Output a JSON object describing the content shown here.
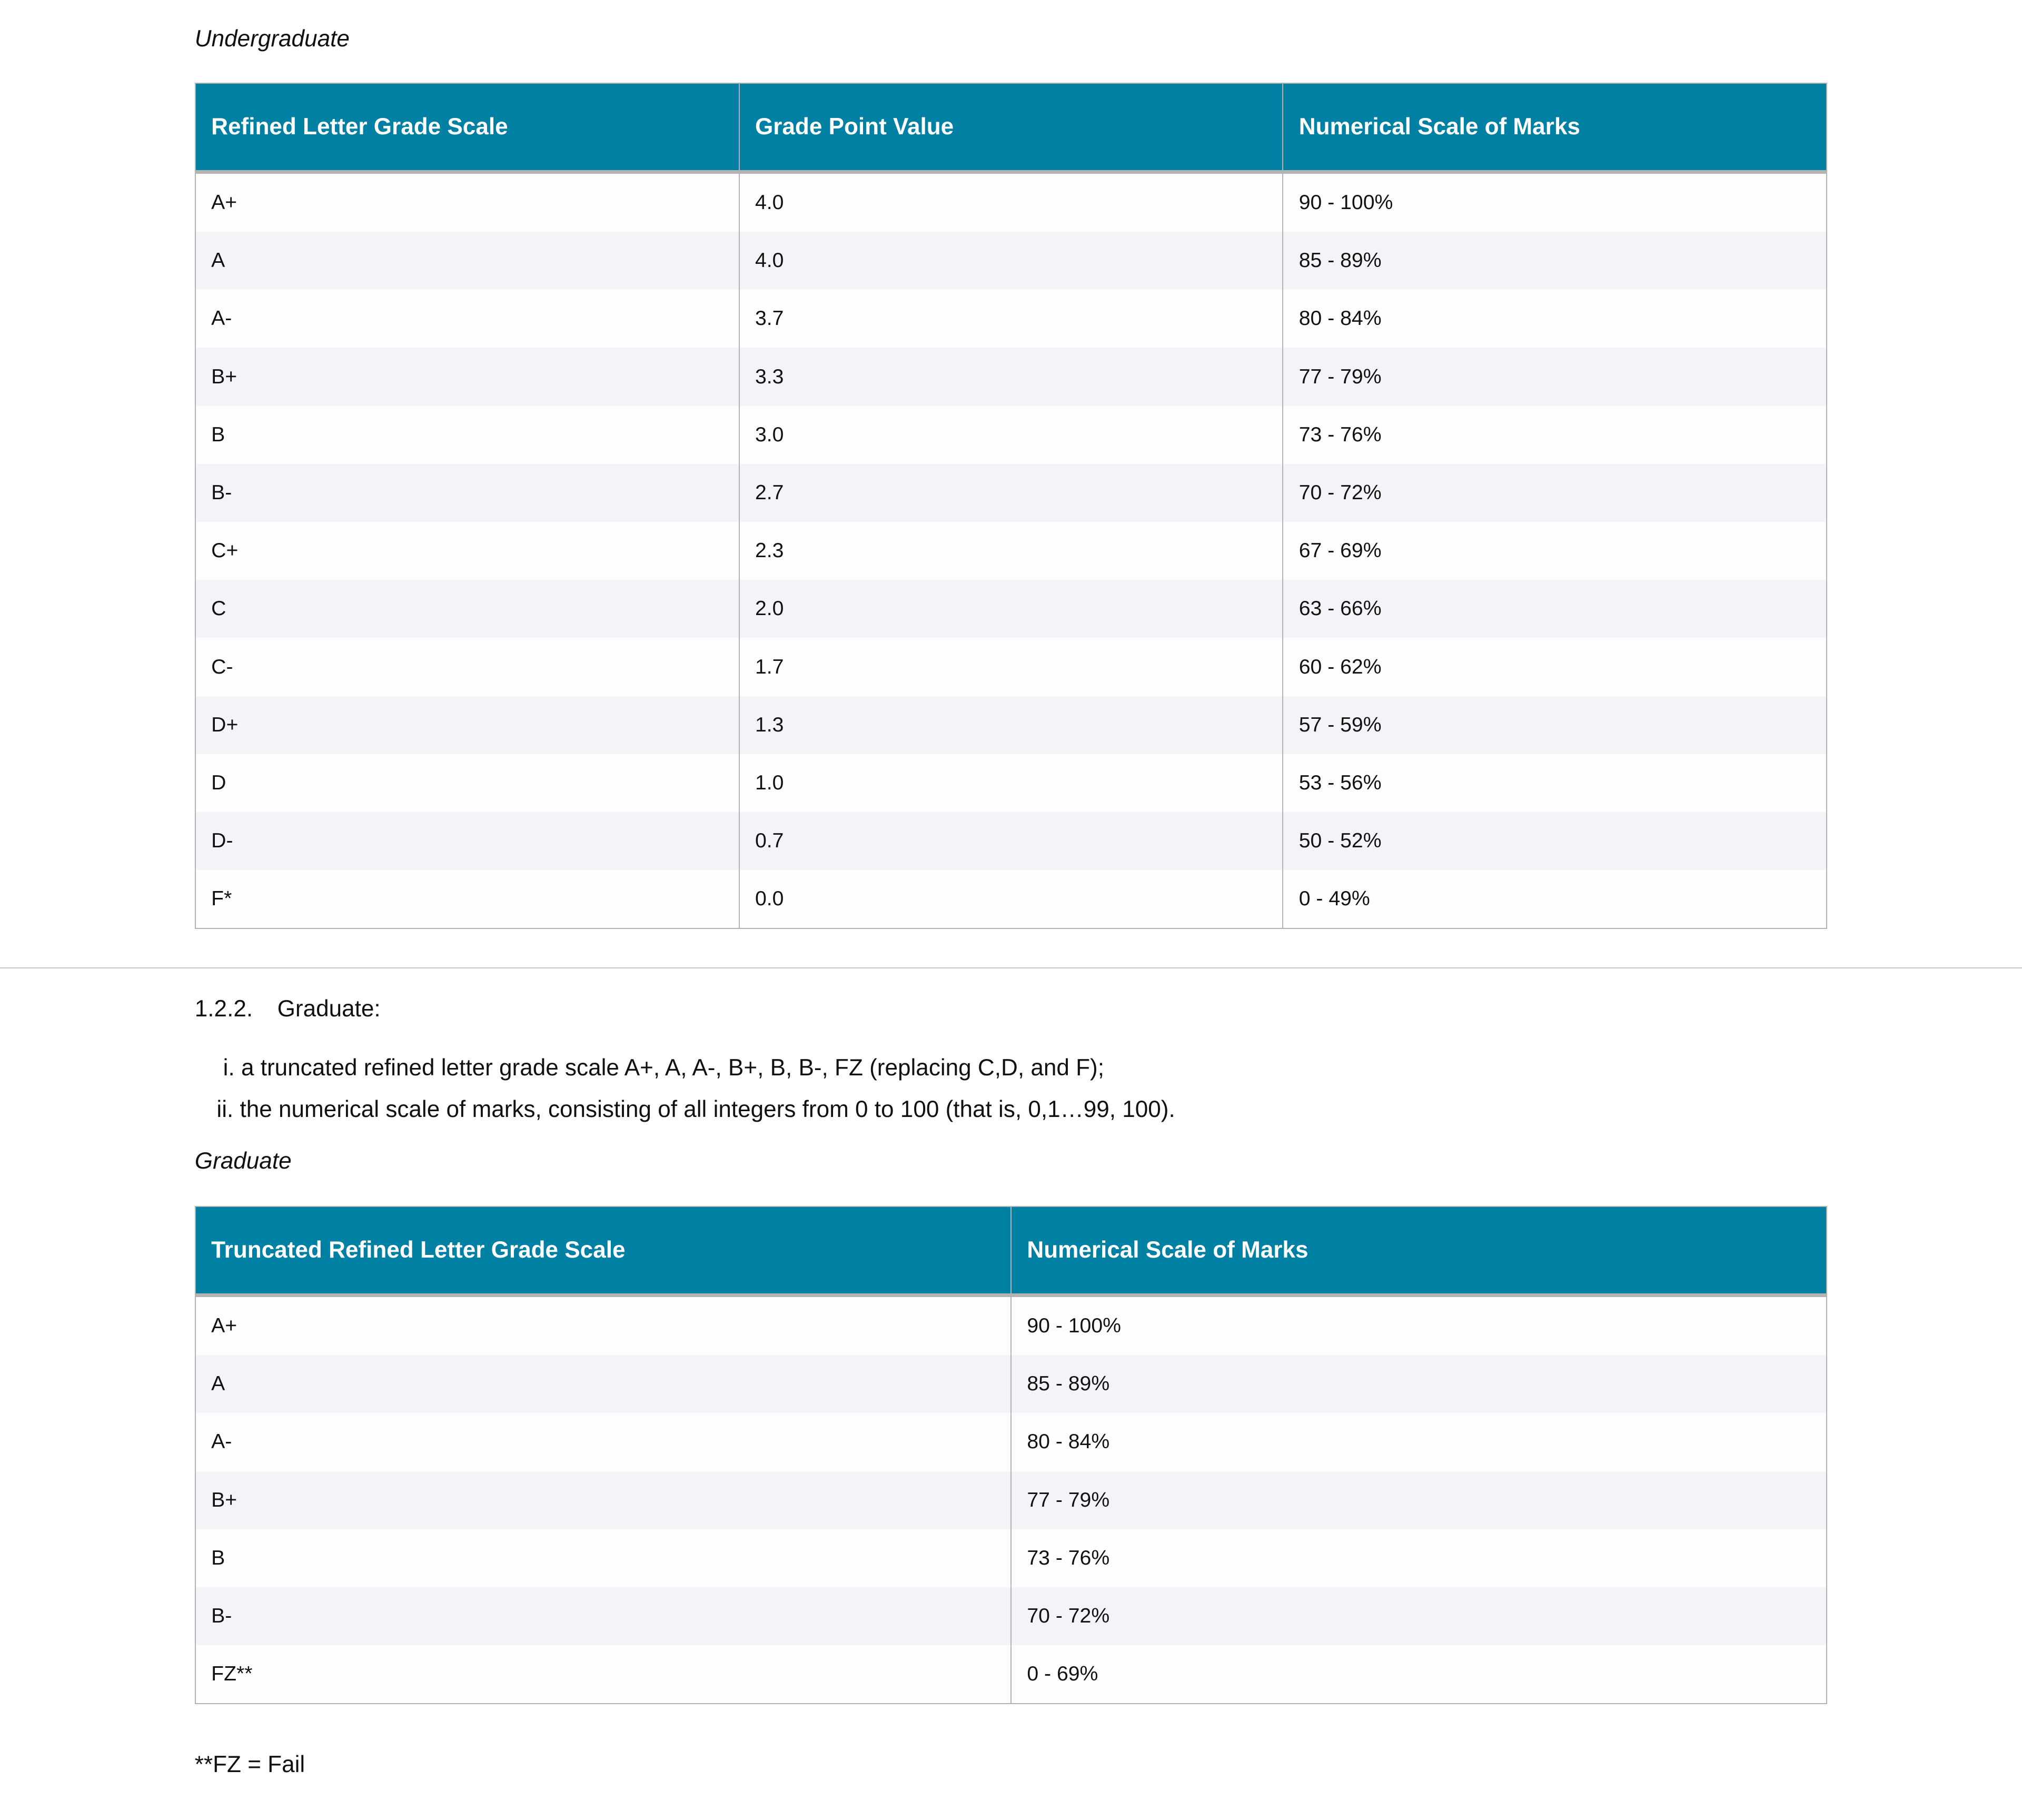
{
  "undergrad": {
    "caption": "Undergraduate",
    "headers": [
      "Refined Letter Grade Scale",
      "Grade Point Value",
      "Numerical Scale of Marks"
    ],
    "rows": [
      [
        "A+",
        "4.0",
        "90 - 100%"
      ],
      [
        "A",
        "4.0",
        "85 - 89%"
      ],
      [
        "A-",
        "3.7",
        "80 - 84%"
      ],
      [
        "B+",
        "3.3",
        "77 - 79%"
      ],
      [
        "B",
        "3.0",
        "73 - 76%"
      ],
      [
        "B-",
        "2.7",
        "70 - 72%"
      ],
      [
        "C+",
        "2.3",
        "67 - 69%"
      ],
      [
        "C",
        "2.0",
        "63 - 66%"
      ],
      [
        "C-",
        "1.7",
        "60 - 62%"
      ],
      [
        "D+",
        "1.3",
        "57 - 59%"
      ],
      [
        "D",
        "1.0",
        "53 - 56%"
      ],
      [
        "D-",
        "0.7",
        "50 - 52%"
      ],
      [
        "F*",
        "0.0",
        "0 - 49%"
      ]
    ]
  },
  "graduate": {
    "section_number": "1.2.2.",
    "section_title": "Graduate:",
    "items": [
      "i. a truncated refined letter grade scale A+, A, A-, B+, B, B-, FZ (replacing C,D, and F);",
      "ii. the numerical scale of marks, consisting of all integers from 0 to 100 (that is, 0,1…99, 100)."
    ],
    "caption": "Graduate",
    "headers": [
      "Truncated Refined Letter Grade Scale",
      "Numerical Scale of Marks"
    ],
    "rows": [
      [
        "A+",
        "90 - 100%"
      ],
      [
        "A",
        "85 - 89%"
      ],
      [
        "A-",
        "80 - 84%"
      ],
      [
        "B+",
        "77 - 79%"
      ],
      [
        "B",
        "73 - 76%"
      ],
      [
        "B-",
        "70 - 72%"
      ],
      [
        "FZ**",
        "0 - 69%"
      ]
    ],
    "footnote": "**FZ = Fail"
  },
  "colors": {
    "header_bg": "#0080a3",
    "alt_row": "#f3f4f7"
  }
}
